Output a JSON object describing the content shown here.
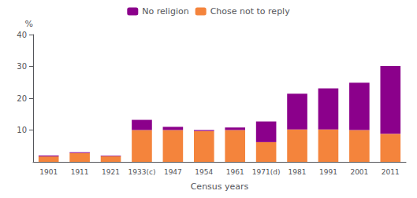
{
  "chart_data": {
    "type": "bar",
    "stacked": true,
    "categories": [
      "1901",
      "1911",
      "1921",
      "1933(c)",
      "1947",
      "1954",
      "1961",
      "1971(d)",
      "1981",
      "1991",
      "2001",
      "2011"
    ],
    "series": [
      {
        "name": "Chose not to reply",
        "color": "#f4843c",
        "values": [
          1.7,
          2.8,
          1.8,
          10.0,
          10.0,
          9.7,
          10.0,
          6.2,
          10.2,
          10.2,
          10.0,
          8.8
        ]
      },
      {
        "name": "No religion",
        "color": "#8b008b",
        "values": [
          0.3,
          0.2,
          0.2,
          3.2,
          1.0,
          0.3,
          0.8,
          6.5,
          11.2,
          12.9,
          14.9,
          21.3
        ]
      }
    ],
    "xlabel": "Census years",
    "ylabel": "%",
    "ylim": [
      0,
      40
    ],
    "yticks": [
      10,
      20,
      30,
      40
    ],
    "grid": false,
    "legend": "top"
  }
}
